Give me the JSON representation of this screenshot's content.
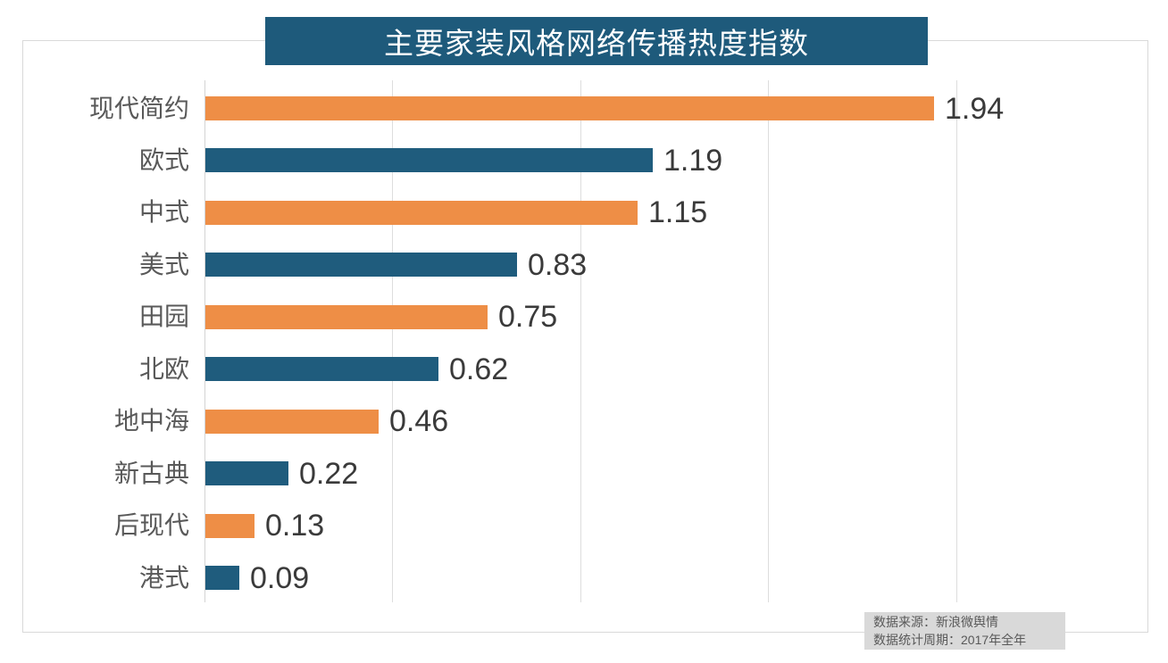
{
  "title": {
    "text": "主要家装风格网络传播热度指数",
    "bg_color": "#1e5a7b",
    "text_color": "#ffffff"
  },
  "source_note": {
    "line1": "数据来源：新浪微舆情",
    "line2": "数据统计周期：2017年全年",
    "bg_color": "#d9d9d9",
    "text_color": "#595959"
  },
  "chart_data": {
    "type": "bar",
    "orientation": "horizontal",
    "title": "主要家装风格网络传播热度指数",
    "categories": [
      "现代简约",
      "欧式",
      "中式",
      "美式",
      "田园",
      "北欧",
      "地中海",
      "新古典",
      "后现代",
      "港式"
    ],
    "values": [
      1.94,
      1.19,
      1.15,
      0.83,
      0.75,
      0.62,
      0.46,
      0.22,
      0.13,
      0.09
    ],
    "value_labels": [
      "1.94",
      "1.19",
      "1.15",
      "0.83",
      "0.75",
      "0.62",
      "0.46",
      "0.22",
      "0.13",
      "0.09"
    ],
    "bar_colors": [
      "#ee8e46",
      "#1f5c7d",
      "#ee8e46",
      "#1f5c7d",
      "#ee8e46",
      "#1f5c7d",
      "#ee8e46",
      "#1f5c7d",
      "#ee8e46",
      "#1f5c7d"
    ],
    "color_palette": {
      "orange": "#ee8e46",
      "blue": "#1f5c7d"
    },
    "xlabel": "",
    "ylabel": "",
    "xlim": [
      0,
      2.5
    ],
    "gridline_values": [
      0,
      0.5,
      1.0,
      1.5,
      2.0
    ],
    "grid": "vertical-only",
    "legend": "none",
    "data_labels": "outside-end"
  }
}
